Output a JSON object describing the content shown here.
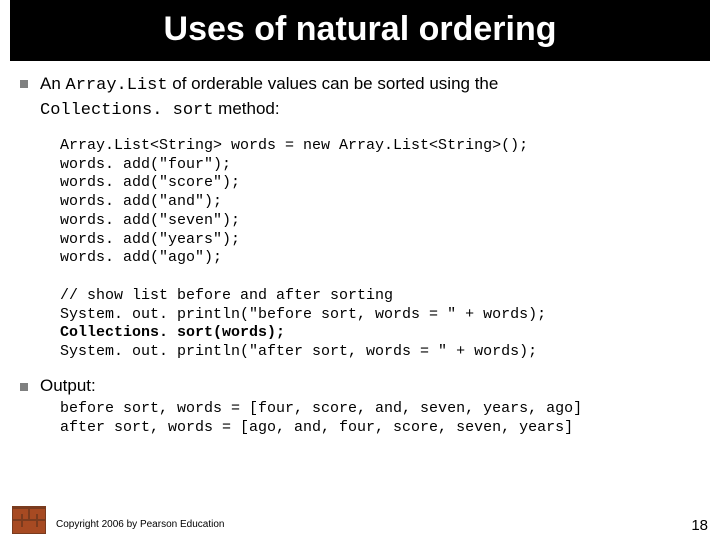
{
  "title": "Uses of natural ordering",
  "intro": {
    "pre": "An ",
    "mono1": "Array.List",
    "mid": " of orderable values can be sorted using the ",
    "mono2": "Collections. sort",
    "post": " method:"
  },
  "code": {
    "line1": "Array.List<String> words = new Array.List<String>();",
    "line2": "words. add(\"four\");",
    "line3": "words. add(\"score\");",
    "line4": "words. add(\"and\");",
    "line5": "words. add(\"seven\");",
    "line6": "words. add(\"years\");",
    "line7": "words. add(\"ago\");",
    "blank1": "",
    "comment": "// show list before and after sorting",
    "line8": "System. out. println(\"before sort, words = \" + words);",
    "line9": "Collections. sort(words);",
    "line10": "System. out. println(\"after sort, words = \" + words);"
  },
  "outputLabel": "Output:",
  "output": {
    "line1": "before sort, words = [four, score, and, seven, years, ago]",
    "line2": "after sort, words = [ago, and, four, score, seven, years]"
  },
  "copyright": "Copyright 2006 by Pearson Education",
  "pageNumber": "18"
}
